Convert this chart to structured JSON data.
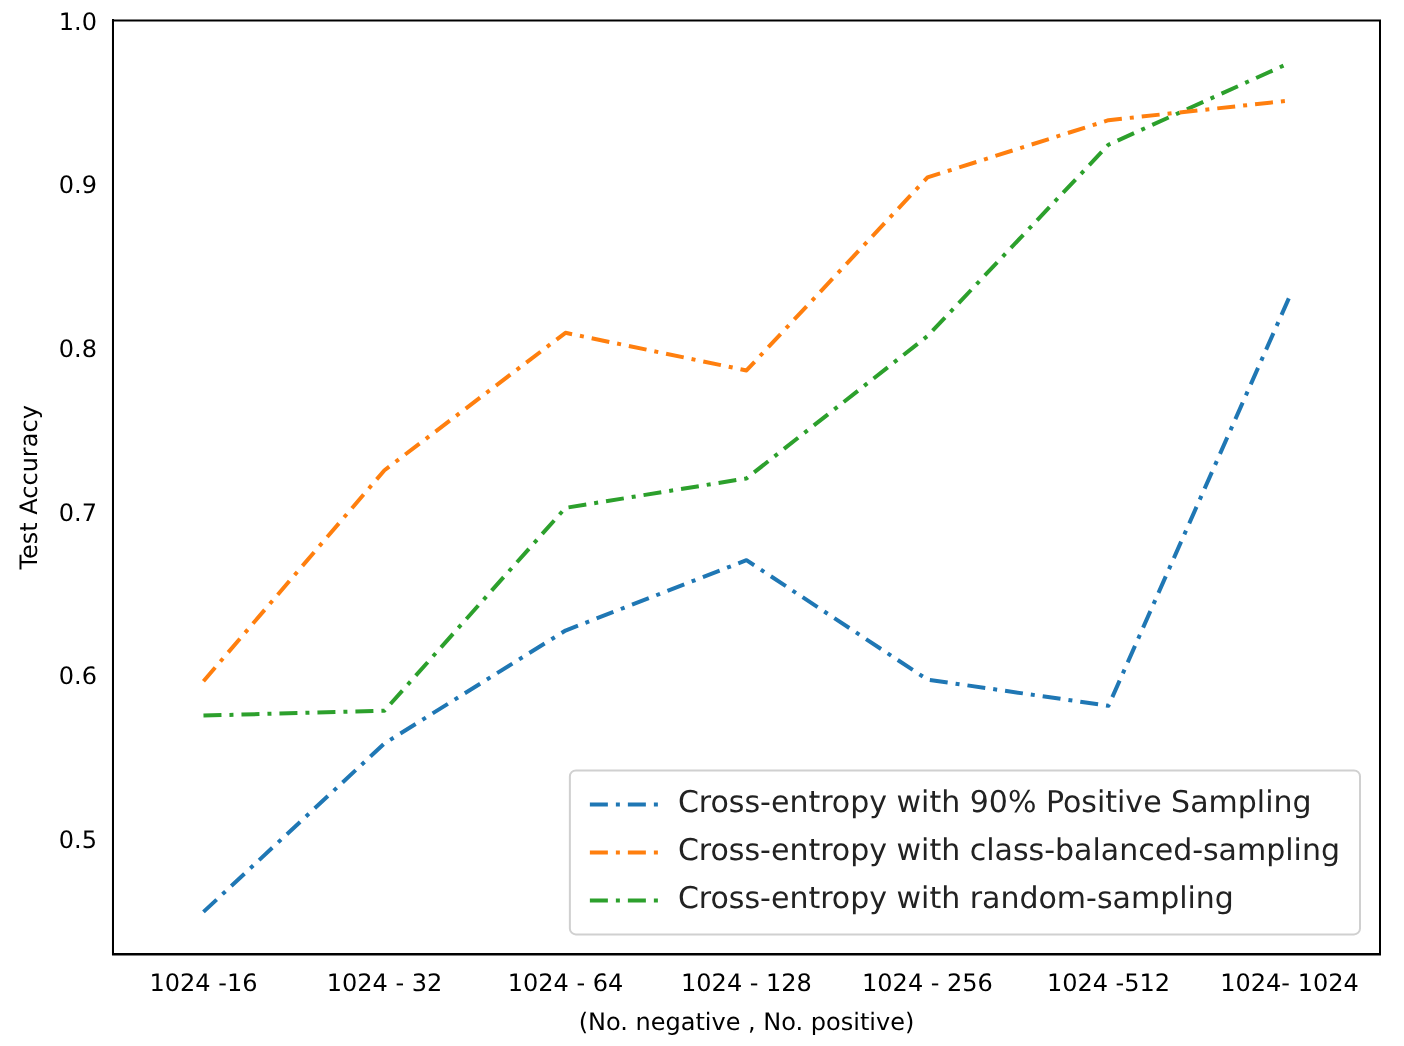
{
  "chart_data": {
    "type": "line",
    "xlabel": "(No. negative , No. positive)",
    "ylabel": "Test Accuracy",
    "categories": [
      "1024 -16",
      "1024 - 32",
      "1024 - 64",
      "1024 - 128",
      "1024 - 256",
      "1024 -512",
      "1024- 1024"
    ],
    "series": [
      {
        "name": "Cross-entropy with 90% Positive Sampling",
        "color": "#1f77b4",
        "values": [
          0.457,
          0.56,
          0.629,
          0.672,
          0.599,
          0.583,
          0.833
        ]
      },
      {
        "name": "Cross-entropy with class-balanced-sampling",
        "color": "#ff7f0e",
        "values": [
          0.598,
          0.727,
          0.811,
          0.788,
          0.906,
          0.941,
          0.953
        ]
      },
      {
        "name": "Cross-entropy with random-sampling",
        "color": "#2ca02c",
        "values": [
          0.577,
          0.58,
          0.704,
          0.722,
          0.809,
          0.926,
          0.976
        ]
      }
    ],
    "ylim": [
      0.431,
      1.002
    ],
    "yticks": [
      0.5,
      0.6,
      0.7,
      0.8,
      0.9,
      {
        "value": 1,
        "label": "1.0"
      }
    ],
    "grid": false,
    "legend": "bottom right",
    "marker": "none",
    "line_style": "dashed"
  }
}
